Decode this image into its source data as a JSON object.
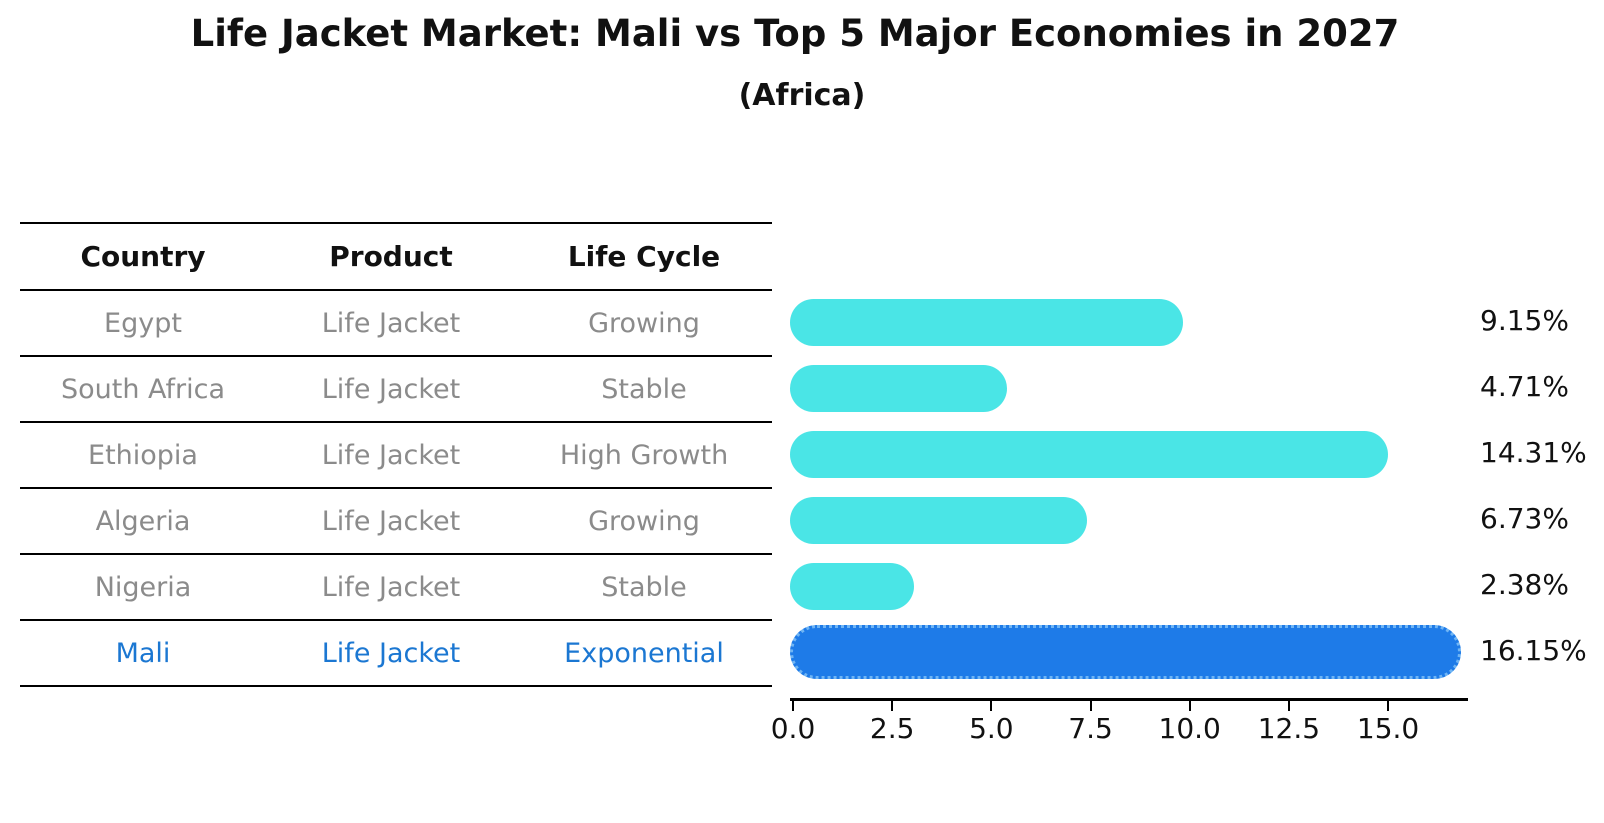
{
  "title": "Life Jacket Market: Mali vs Top 5 Major Economies in 2027",
  "subtitle": "(Africa)",
  "table": {
    "headers": [
      "Country",
      "Product",
      "Life Cycle"
    ],
    "rows": [
      {
        "country": "Egypt",
        "product": "Life Jacket",
        "life_cycle": "Growing"
      },
      {
        "country": "South Africa",
        "product": "Life Jacket",
        "life_cycle": "Stable"
      },
      {
        "country": "Ethiopia",
        "product": "Life Jacket",
        "life_cycle": "High Growth"
      },
      {
        "country": "Algeria",
        "product": "Life Jacket",
        "life_cycle": "Growing"
      },
      {
        "country": "Nigeria",
        "product": "Life Jacket",
        "life_cycle": "Stable"
      },
      {
        "country": "Mali",
        "product": "Life Jacket",
        "life_cycle": "Exponential"
      }
    ],
    "highlight_row": "Mali"
  },
  "chart_data": {
    "type": "bar",
    "orientation": "horizontal",
    "title": "Life Jacket Market: Mali vs Top 5 Major Economies in 2027",
    "subtitle": "(Africa)",
    "categories": [
      "Egypt",
      "South Africa",
      "Ethiopia",
      "Algeria",
      "Nigeria",
      "Mali"
    ],
    "values": [
      9.15,
      4.71,
      14.31,
      6.73,
      2.38,
      16.15
    ],
    "value_labels": [
      "9.15%",
      "4.71%",
      "14.31%",
      "6.73%",
      "2.38%",
      "16.15%"
    ],
    "highlight_index": 5,
    "xlim": [
      0,
      17
    ],
    "xticks": [
      0.0,
      2.5,
      5.0,
      7.5,
      10.0,
      12.5,
      15.0
    ],
    "xtick_labels": [
      "0.0",
      "2.5",
      "5.0",
      "7.5",
      "10.0",
      "12.5",
      "15.0"
    ],
    "grid": false,
    "legend": "none",
    "bar_color": "#4ae5e6",
    "highlight_bar_color": "#1e7be8",
    "highlight_border_color": "#70b5f4",
    "highlight_text_color": "#1b77d2",
    "text_color": "#111111",
    "muted_text_color": "#8b8b8b"
  }
}
